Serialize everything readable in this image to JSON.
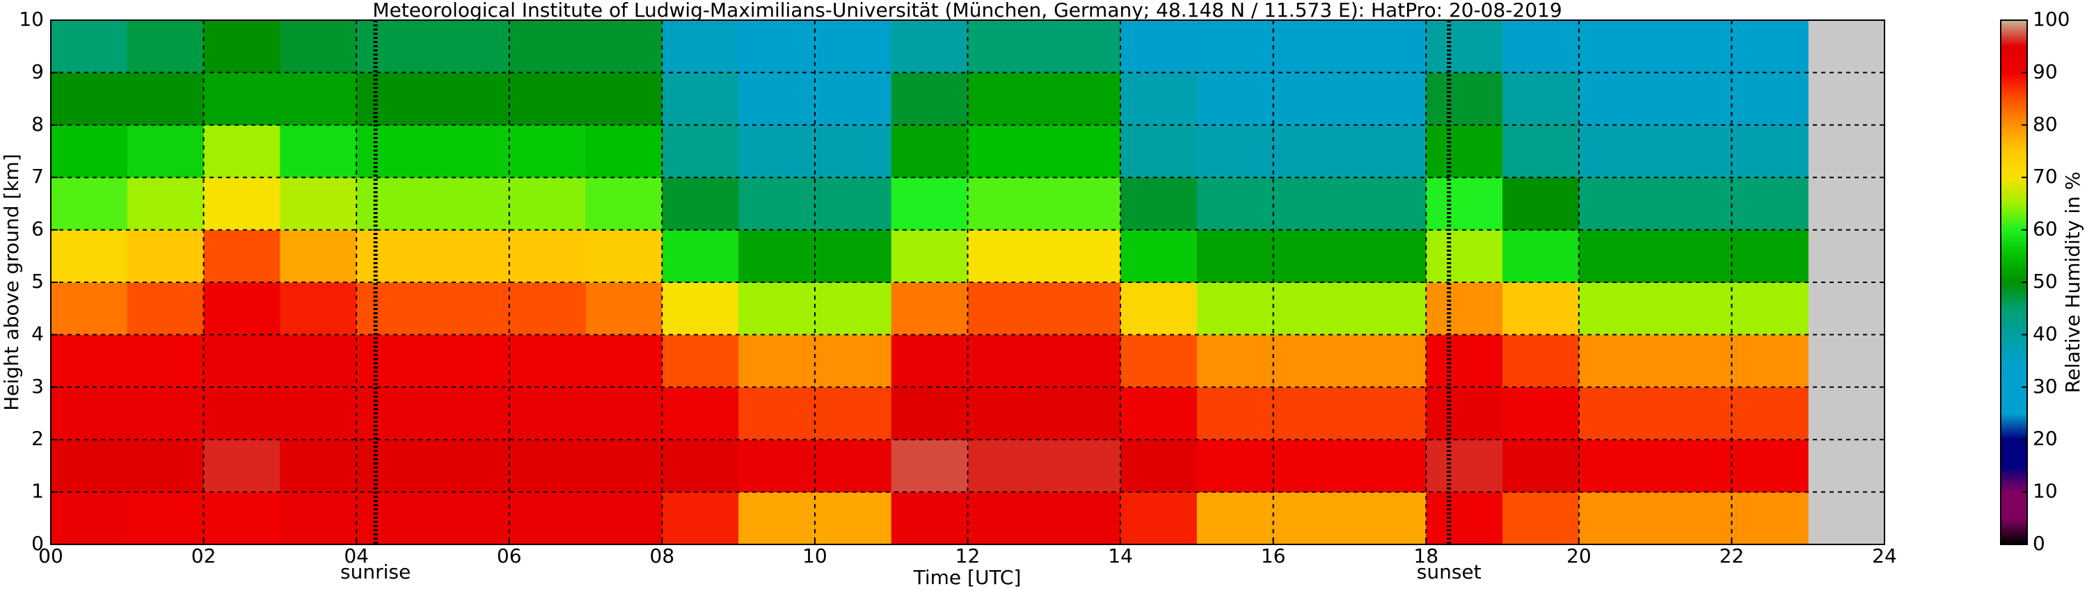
{
  "chart_data": {
    "type": "heatmap",
    "title": "Meteorological Institute of Ludwig-Maximilians-Universität (München, Germany; 48.148 N / 11.573 E):    HatPro: 20-08-2019",
    "x_label": "Time [UTC]",
    "y_label": "Height above ground [km]",
    "colorbar_label": "Relative Humidity in %",
    "xlim": [
      0,
      24
    ],
    "xticks": [
      {
        "value": 0,
        "label": "00"
      },
      {
        "value": 2,
        "label": "02"
      },
      {
        "value": 4,
        "label": "04"
      },
      {
        "value": 6,
        "label": "06"
      },
      {
        "value": 8,
        "label": "08"
      },
      {
        "value": 10,
        "label": "10"
      },
      {
        "value": 12,
        "label": "12"
      },
      {
        "value": 14,
        "label": "14"
      },
      {
        "value": 16,
        "label": "16"
      },
      {
        "value": 18,
        "label": "18"
      },
      {
        "value": 20,
        "label": "20"
      },
      {
        "value": 22,
        "label": "22"
      },
      {
        "value": 24,
        "label": "24"
      }
    ],
    "ylim": [
      0,
      10
    ],
    "yticks": [
      0,
      1,
      2,
      3,
      4,
      5,
      6,
      7,
      8,
      9,
      10
    ],
    "clim": [
      0,
      100
    ],
    "cticks": [
      0,
      10,
      20,
      30,
      40,
      50,
      60,
      70,
      80,
      90,
      100
    ],
    "grid": true,
    "no_data_color": "#c8c8c8",
    "colors": [
      "#000000",
      "#800060",
      "#800060",
      "#000080",
      "#000080",
      "#00a0d0",
      "#00a0d0",
      "#00a0c8",
      "#00a0a0",
      "#00a070",
      "#009000",
      "#00c000",
      "#20f020",
      "#a0f000",
      "#f8e000",
      "#ffc800",
      "#ff9000",
      "#ff5000",
      "#f00000",
      "#e00000",
      "#c8b89a"
    ],
    "annotations": [
      {
        "x": 4.25,
        "label": "sunrise"
      },
      {
        "x": 18.3,
        "label": "sunset"
      }
    ],
    "x": [
      0,
      1,
      2,
      3,
      4,
      5,
      6,
      7,
      8,
      9,
      10,
      11,
      12,
      13,
      14,
      15,
      16,
      17,
      18,
      19,
      20,
      21,
      22
    ],
    "y": [
      0,
      1,
      2,
      3,
      4,
      5,
      6,
      7,
      8,
      9
    ],
    "z": [
      [
        92,
        95,
        92,
        90,
        82,
        72,
        62,
        55,
        50,
        45
      ],
      [
        90,
        95,
        92,
        90,
        85,
        75,
        65,
        57,
        50,
        47
      ],
      [
        90,
        96,
        93,
        92,
        90,
        85,
        70,
        65,
        52,
        50
      ],
      [
        92,
        95,
        93,
        92,
        88,
        78,
        66,
        58,
        52,
        48
      ],
      [
        92,
        95,
        92,
        90,
        85,
        75,
        64,
        56,
        50,
        47
      ],
      [
        92,
        95,
        92,
        90,
        85,
        75,
        64,
        56,
        50,
        47
      ],
      [
        92,
        95,
        92,
        90,
        85,
        75,
        64,
        56,
        50,
        48
      ],
      [
        92,
        95,
        92,
        90,
        82,
        74,
        62,
        55,
        50,
        48
      ],
      [
        88,
        95,
        90,
        85,
        70,
        58,
        48,
        42,
        40,
        36
      ],
      [
        78,
        92,
        86,
        80,
        65,
        52,
        45,
        38,
        35,
        32
      ],
      [
        78,
        92,
        86,
        80,
        65,
        52,
        45,
        38,
        35,
        32
      ],
      [
        92,
        97,
        95,
        92,
        82,
        65,
        60,
        52,
        48,
        40
      ],
      [
        92,
        96,
        94,
        92,
        85,
        70,
        62,
        55,
        52,
        45
      ],
      [
        92,
        96,
        94,
        92,
        85,
        70,
        62,
        55,
        52,
        45
      ],
      [
        88,
        95,
        90,
        85,
        72,
        56,
        48,
        40,
        38,
        34
      ],
      [
        78,
        90,
        86,
        80,
        65,
        52,
        45,
        38,
        35,
        32
      ],
      [
        78,
        90,
        86,
        80,
        65,
        52,
        45,
        38,
        35,
        32
      ],
      [
        78,
        90,
        86,
        80,
        65,
        52,
        45,
        38,
        35,
        32
      ],
      [
        90,
        96,
        93,
        90,
        80,
        65,
        60,
        52,
        48,
        40
      ],
      [
        85,
        94,
        90,
        86,
        75,
        58,
        50,
        42,
        40,
        34
      ],
      [
        80,
        90,
        86,
        80,
        65,
        52,
        45,
        38,
        35,
        32
      ],
      [
        80,
        90,
        86,
        80,
        65,
        52,
        45,
        38,
        35,
        32
      ],
      [
        80,
        90,
        86,
        80,
        65,
        52,
        45,
        38,
        35,
        32
      ]
    ]
  }
}
